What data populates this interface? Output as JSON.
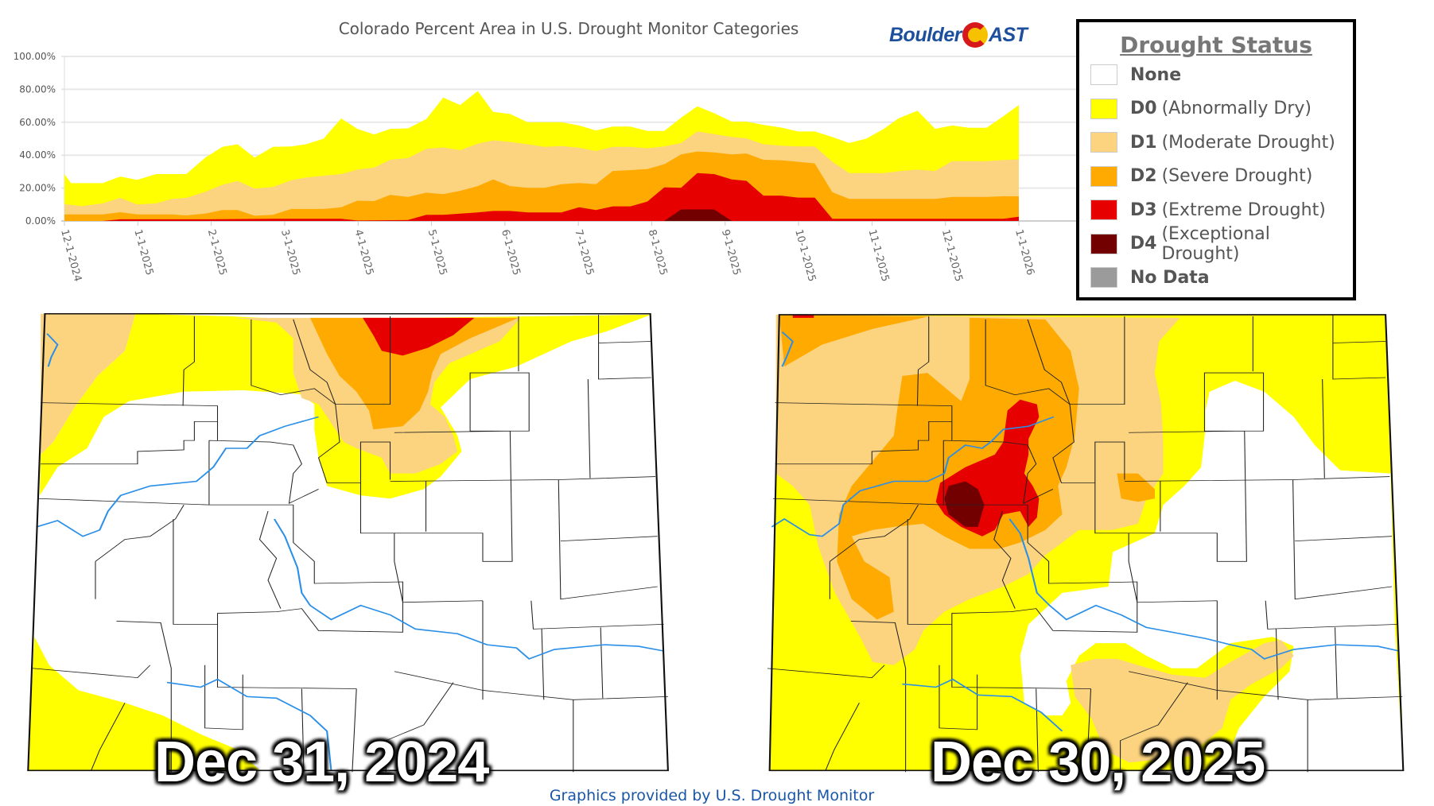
{
  "title": "Colorado Percent Area in U.S. Drought Monitor Categories",
  "logo": {
    "left": "Boulder",
    "right": "AST"
  },
  "legend": {
    "title": "Drought Status",
    "items": [
      {
        "code": "None",
        "desc": "",
        "color": "#ffffff"
      },
      {
        "code": "D0",
        "desc": "(Abnormally Dry)",
        "color": "#ffff00"
      },
      {
        "code": "D1",
        "desc": "(Moderate Drought)",
        "color": "#fcd37f"
      },
      {
        "code": "D2",
        "desc": "(Severe Drought)",
        "color": "#ffaa00"
      },
      {
        "code": "D3",
        "desc": "(Extreme Drought)",
        "color": "#e60000"
      },
      {
        "code": "D4",
        "desc": "(Exceptional Drought)",
        "color": "#730000"
      },
      {
        "code": "No Data",
        "desc": "",
        "color": "#9b9b9b"
      }
    ]
  },
  "maps": {
    "left_date": "Dec 31, 2024",
    "right_date": "Dec 30, 2025"
  },
  "footer": "Graphics provided by U.S. Drought Monitor",
  "chart_data": {
    "type": "area",
    "stacked": true,
    "title": "Colorado Percent Area in U.S. Drought Monitor Categories",
    "xlabel": "",
    "ylabel": "",
    "x_unit": "months since 12-1-2024",
    "xlim": [
      0,
      13
    ],
    "ylim": [
      0,
      100
    ],
    "yticks": [
      "0.00%",
      "20.00%",
      "40.00%",
      "60.00%",
      "80.00%",
      "100.00%"
    ],
    "ytick_values": [
      0,
      20,
      40,
      60,
      80,
      100
    ],
    "xticks": [
      "12-1-2024",
      "1-1-2025",
      "2-1-2025",
      "3-1-2025",
      "4-1-2025",
      "5-1-2025",
      "6-1-2025",
      "7-1-2025",
      "8-1-2025",
      "9-1-2025",
      "10-1-2025",
      "11-1-2025",
      "12-1-2025",
      "1-1-2026"
    ],
    "grid": true,
    "series": [
      {
        "name": "D0-D4",
        "color": "#ffff00",
        "x": [
          0,
          0.09,
          0.52,
          0.76,
          0.99,
          1.25,
          1.66,
          1.92,
          2.15,
          2.36,
          2.59,
          2.84,
          3.09,
          3.29,
          3.53,
          3.77,
          3.99,
          4.22,
          4.44,
          4.68,
          4.93,
          5.16,
          5.39,
          5.63,
          5.84,
          6.07,
          6.31,
          6.77,
          7.01,
          7.24,
          7.47,
          7.71,
          7.94,
          8.17,
          8.4,
          8.62,
          8.85,
          9.09,
          9.29,
          9.52,
          9.76,
          9.99,
          10.22,
          10.46,
          10.69,
          10.92,
          11.16,
          11.36,
          11.62,
          11.86,
          12.09,
          12.32,
          12.56,
          12.79,
          13
        ],
        "y": [
          28.5,
          23,
          23,
          27,
          25,
          28.5,
          28.5,
          38.5,
          45,
          46.6,
          38.5,
          45,
          45.3,
          46.6,
          50,
          62.3,
          56,
          52.6,
          56,
          56.3,
          62,
          75,
          70.5,
          79,
          66.3,
          65,
          60,
          60,
          58,
          55,
          57.4,
          57.4,
          54.7,
          54.7,
          62.8,
          69.7,
          65.5,
          60.4,
          60.4,
          58.4,
          56.8,
          54.4,
          54.4,
          51,
          47.4,
          50,
          56,
          62.3,
          67,
          56,
          58,
          56.6,
          56.6,
          63.6,
          70.5
        ]
      },
      {
        "name": "D1-D4",
        "color": "#fcd37f",
        "x": [
          0,
          0.24,
          0.52,
          0.76,
          0.99,
          1.25,
          1.46,
          1.66,
          1.92,
          2.15,
          2.36,
          2.59,
          2.84,
          3.09,
          3.29,
          3.53,
          3.77,
          3.99,
          4.22,
          4.44,
          4.68,
          4.93,
          5.16,
          5.39,
          5.63,
          5.84,
          6.07,
          6.31,
          6.54,
          6.77,
          7.01,
          7.24,
          7.47,
          7.71,
          7.94,
          8.17,
          8.4,
          8.62,
          8.85,
          9.09,
          9.29,
          9.52,
          9.76,
          9.99,
          10.22,
          10.46,
          10.69,
          10.92,
          11.16,
          11.39,
          11.62,
          11.86,
          12.09,
          12.32,
          12.56,
          12.79,
          13
        ],
        "y": [
          10.2,
          9,
          10.7,
          14,
          10,
          10.7,
          13.4,
          14,
          17.8,
          22,
          24.3,
          19.7,
          20.7,
          24.8,
          26.4,
          27.5,
          28.5,
          31.2,
          32.5,
          37.2,
          38.2,
          43.9,
          44.7,
          43,
          47,
          49,
          48,
          46.6,
          45,
          45.5,
          44.5,
          42.5,
          45,
          45,
          44.2,
          45.3,
          47.4,
          54.4,
          52.8,
          51,
          50.2,
          46.6,
          45.8,
          45.3,
          45.3,
          36,
          29.1,
          29.1,
          29.1,
          30.4,
          31.2,
          30.4,
          36.4,
          36.4,
          36.4,
          37,
          37.4
        ]
      },
      {
        "name": "D2-D4",
        "color": "#ffaa00",
        "x": [
          0,
          0.09,
          0.52,
          0.76,
          0.99,
          1.46,
          1.66,
          1.92,
          2.15,
          2.36,
          2.59,
          2.84,
          3.09,
          3.53,
          3.77,
          3.99,
          4.22,
          4.44,
          4.68,
          4.93,
          5.16,
          5.39,
          5.63,
          5.84,
          6.07,
          6.31,
          6.54,
          6.77,
          7.01,
          7.24,
          7.47,
          7.71,
          7.94,
          8.17,
          8.4,
          8.62,
          8.85,
          9.09,
          9.29,
          9.52,
          9.76,
          9.99,
          10.22,
          10.46,
          10.69,
          11.16,
          11.86,
          12.09,
          12.56,
          12.79,
          13
        ],
        "y": [
          4,
          4,
          4,
          5.3,
          4,
          4,
          3.4,
          4.5,
          6.6,
          6.6,
          3.2,
          3.7,
          7.3,
          7.3,
          8.3,
          12.3,
          12.1,
          15.9,
          14.6,
          17.2,
          16.3,
          18.3,
          21.2,
          25.2,
          21.2,
          20.2,
          20.2,
          22.3,
          23.1,
          22.3,
          30.4,
          30.9,
          31.6,
          34.5,
          40.5,
          42.2,
          41.7,
          40.5,
          41,
          37.2,
          36.9,
          36,
          35,
          17.5,
          13.4,
          13.4,
          13.4,
          14.6,
          14.6,
          15,
          15
        ]
      },
      {
        "name": "D3-D4",
        "color": "#e60000",
        "x": [
          0,
          0.52,
          0.76,
          1.92,
          2.84,
          3.77,
          3.99,
          4.68,
          4.93,
          5.16,
          5.39,
          5.63,
          5.84,
          6.07,
          6.31,
          6.77,
          7.01,
          7.24,
          7.47,
          7.71,
          7.94,
          8.17,
          8.4,
          8.62,
          8.85,
          9.09,
          9.29,
          9.52,
          9.76,
          9.99,
          10.22,
          10.46,
          12.79,
          13
        ],
        "y": [
          0,
          0,
          1,
          1,
          1.3,
          1.3,
          0.3,
          0.6,
          3.7,
          3.7,
          4.5,
          5.2,
          6.1,
          6.1,
          5.2,
          5.2,
          8.3,
          6.6,
          8.9,
          8.9,
          11.8,
          20.4,
          20.2,
          29.1,
          28.5,
          25.2,
          24.4,
          15.4,
          15.4,
          14.2,
          14.2,
          1.3,
          1.3,
          2.6
        ]
      },
      {
        "name": "D4",
        "color": "#730000",
        "x": [
          8.17,
          8.4,
          8.85,
          9.09
        ],
        "y": [
          0,
          7,
          7,
          0
        ]
      }
    ]
  }
}
